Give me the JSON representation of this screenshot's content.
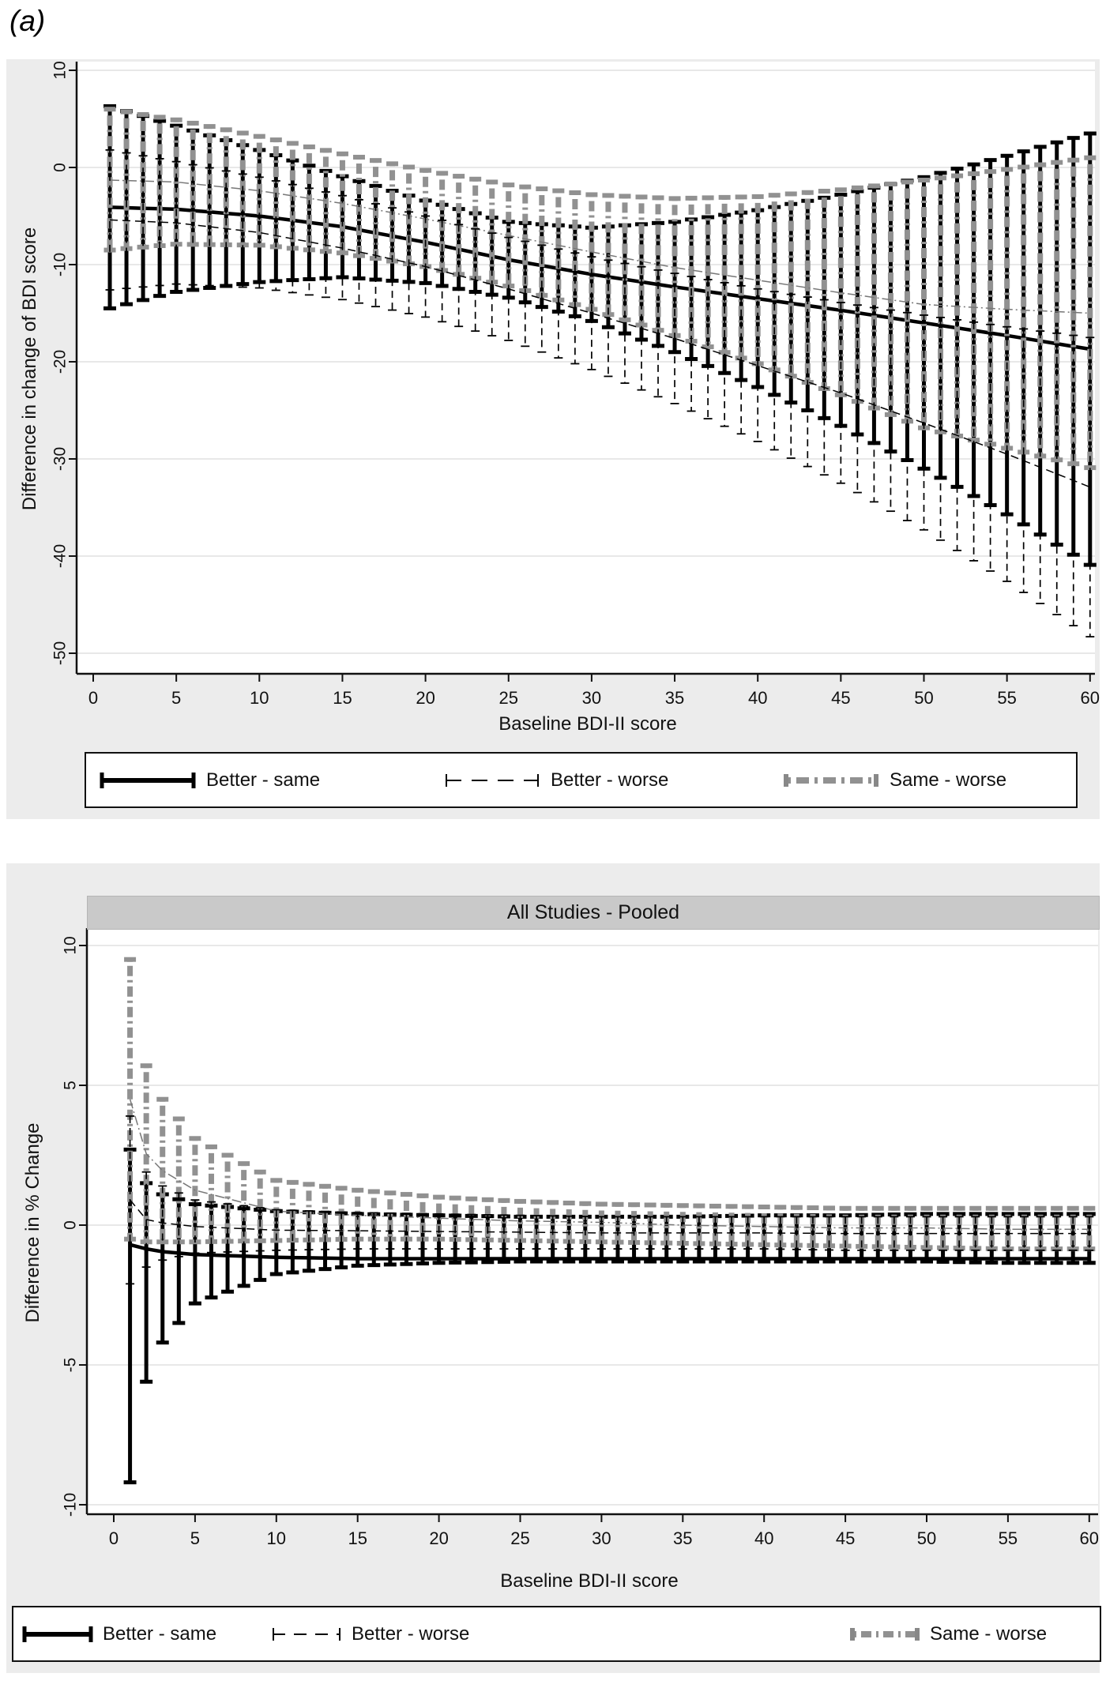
{
  "figure": {
    "description": "Two-panel grayscale error-bar figure of differences in BDI change by baseline severity",
    "colors": {
      "black": "#000000",
      "gray_series": "#919191",
      "gray_series_center": "#777777",
      "figure_background": "#ececec",
      "plot_background": "#ffffff",
      "gridline": "#e0e0e0",
      "axis": "#111111",
      "band_background": "#c9c9c9",
      "text": "#111111"
    }
  },
  "panel_a": {
    "letter": "(a)",
    "y_axis": {
      "title": "Difference in change of BDI score",
      "ticks": [
        {
          "v": 10,
          "label": "10"
        },
        {
          "v": 0,
          "label": "0"
        },
        {
          "v": -10,
          "label": "-10"
        },
        {
          "v": -20,
          "label": "-20"
        },
        {
          "v": -30,
          "label": "-30"
        },
        {
          "v": -40,
          "label": "-40"
        },
        {
          "v": -50,
          "label": "-50"
        }
      ]
    },
    "x_axis": {
      "title": "Baseline BDI-II score",
      "ticks": [
        {
          "v": 0,
          "label": "0"
        },
        {
          "v": 5,
          "label": "5"
        },
        {
          "v": 10,
          "label": "10"
        },
        {
          "v": 15,
          "label": "15"
        },
        {
          "v": 20,
          "label": "20"
        },
        {
          "v": 25,
          "label": "25"
        },
        {
          "v": 30,
          "label": "30"
        },
        {
          "v": 35,
          "label": "35"
        },
        {
          "v": 40,
          "label": "40"
        },
        {
          "v": 45,
          "label": "45"
        },
        {
          "v": 50,
          "label": "50"
        },
        {
          "v": 55,
          "label": "55"
        },
        {
          "v": 60,
          "label": "60"
        }
      ]
    },
    "legend": [
      {
        "label": "Better - same",
        "style": "thick-solid-black"
      },
      {
        "label": "Better - worse",
        "style": "thin-dash-black"
      },
      {
        "label": "Same - worse",
        "style": "thick-dashdot-gray"
      }
    ],
    "chart_data": {
      "type": "errorbar",
      "title": "",
      "xlabel": "Baseline BDI-II score",
      "ylabel": "Difference in change of BDI score",
      "xlim": [
        0,
        60
      ],
      "ylim": [
        -52,
        11
      ],
      "grid": "horizontal",
      "bars_at_every_integer_x": true,
      "x_anchors": [
        1,
        5,
        10,
        15,
        20,
        25,
        30,
        35,
        40,
        45,
        50,
        55,
        60
      ],
      "series": [
        {
          "name": "Better - same",
          "style": "thick-solid-black",
          "center": [
            -4.1,
            -4.3,
            -5.0,
            -6.1,
            -7.7,
            -9.5,
            -11.0,
            -12.3,
            -13.5,
            -14.7,
            -16.0,
            -17.3,
            -18.7
          ],
          "hi": [
            6.3,
            4.3,
            1.8,
            -0.9,
            -3.4,
            -5.6,
            -6.2,
            -5.6,
            -4.4,
            -2.8,
            -1.0,
            1.2,
            3.5
          ],
          "lo": [
            -14.5,
            -12.8,
            -11.8,
            -11.3,
            -11.9,
            -13.4,
            -15.8,
            -19.0,
            -22.6,
            -26.6,
            -31.0,
            -35.7,
            -40.9
          ]
        },
        {
          "name": "Better - worse",
          "style": "thin-dash-black",
          "center": [
            -5.4,
            -5.7,
            -6.7,
            -8.3,
            -10.2,
            -12.5,
            -15.0,
            -17.6,
            -20.4,
            -23.2,
            -26.3,
            -29.5,
            -32.9
          ],
          "hi": [
            1.8,
            0.6,
            -1.0,
            -2.9,
            -5.0,
            -7.2,
            -9.2,
            -10.9,
            -12.5,
            -13.9,
            -15.2,
            -16.4,
            -17.5
          ],
          "lo": [
            -12.6,
            -12.0,
            -12.4,
            -13.6,
            -15.4,
            -17.8,
            -20.8,
            -24.3,
            -28.2,
            -32.5,
            -37.3,
            -42.6,
            -48.3
          ]
        },
        {
          "name": "Same - worse",
          "style": "thick-dashdot-gray",
          "center": [
            -1.3,
            -1.5,
            -2.4,
            -3.7,
            -5.3,
            -7.0,
            -8.7,
            -10.3,
            -11.6,
            -12.9,
            -14.1,
            -14.6,
            -15.0
          ],
          "hi": [
            6.0,
            4.9,
            3.2,
            1.4,
            -0.3,
            -1.8,
            -2.8,
            -3.2,
            -3.0,
            -2.3,
            -1.3,
            -0.2,
            1.0
          ],
          "lo": [
            -8.5,
            -7.9,
            -8.0,
            -8.8,
            -10.2,
            -12.2,
            -14.6,
            -17.3,
            -20.2,
            -23.4,
            -26.8,
            -28.9,
            -30.9
          ]
        }
      ]
    }
  },
  "panel_b": {
    "letter": "(b)",
    "band_title": "All Studies - Pooled",
    "y_axis": {
      "title": "Difference in % Change",
      "ticks": [
        {
          "v": 10,
          "label": "10"
        },
        {
          "v": 5,
          "label": "5"
        },
        {
          "v": 0,
          "label": "0"
        },
        {
          "v": -5,
          "label": "-5"
        },
        {
          "v": -10,
          "label": "-10"
        }
      ]
    },
    "x_axis": {
      "title": "Baseline BDI-II score",
      "ticks": [
        {
          "v": 0,
          "label": "0"
        },
        {
          "v": 5,
          "label": "5"
        },
        {
          "v": 10,
          "label": "10"
        },
        {
          "v": 15,
          "label": "15"
        },
        {
          "v": 20,
          "label": "20"
        },
        {
          "v": 25,
          "label": "25"
        },
        {
          "v": 30,
          "label": "30"
        },
        {
          "v": 35,
          "label": "35"
        },
        {
          "v": 40,
          "label": "40"
        },
        {
          "v": 45,
          "label": "45"
        },
        {
          "v": 50,
          "label": "50"
        },
        {
          "v": 55,
          "label": "55"
        },
        {
          "v": 60,
          "label": "60"
        }
      ]
    },
    "legend": [
      {
        "label": "Better - same",
        "style": "thick-solid-black"
      },
      {
        "label": "Better - worse",
        "style": "thin-dash-black"
      },
      {
        "label": "Same - worse",
        "style": "thick-dashdot-gray"
      }
    ],
    "chart_data": {
      "type": "errorbar",
      "title": "All Studies - Pooled",
      "xlabel": "Baseline BDI-II score",
      "ylabel": "Difference in % Change",
      "xlim": [
        0,
        60
      ],
      "ylim": [
        -10.3,
        10.6
      ],
      "grid": "horizontal",
      "bars_at_every_integer_x": true,
      "x_anchors": [
        1,
        2,
        3,
        5,
        10,
        15,
        20,
        25,
        30,
        35,
        40,
        45,
        50,
        55,
        60
      ],
      "series": [
        {
          "name": "Better - same",
          "style": "thick-solid-black",
          "center": [
            -0.7,
            -0.85,
            -0.95,
            -1.05,
            -1.15,
            -1.2,
            -1.2,
            -1.2,
            -1.2,
            -1.2,
            -1.2,
            -1.2,
            -1.2,
            -1.2,
            -1.2
          ],
          "hi": [
            2.7,
            1.5,
            1.1,
            0.75,
            0.5,
            0.4,
            0.35,
            0.3,
            0.3,
            0.3,
            0.35,
            0.35,
            0.4,
            0.4,
            0.4
          ],
          "lo": [
            -9.2,
            -5.6,
            -4.2,
            -2.8,
            -1.75,
            -1.45,
            -1.35,
            -1.3,
            -1.3,
            -1.3,
            -1.3,
            -1.3,
            -1.3,
            -1.35,
            -1.35
          ]
        },
        {
          "name": "Better - worse",
          "style": "thin-dash-black",
          "center": [
            0.9,
            0.2,
            0.08,
            -0.05,
            -0.18,
            -0.2,
            -0.23,
            -0.25,
            -0.28,
            -0.28,
            -0.28,
            -0.3,
            -0.3,
            -0.3,
            -0.3
          ],
          "hi": [
            3.9,
            1.9,
            1.4,
            0.9,
            0.55,
            0.45,
            0.4,
            0.35,
            0.3,
            0.3,
            0.3,
            0.3,
            0.3,
            0.3,
            0.3
          ],
          "lo": [
            -2.1,
            -1.5,
            -1.25,
            -1.0,
            -0.9,
            -0.85,
            -0.85,
            -0.85,
            -0.85,
            -0.85,
            -0.85,
            -0.9,
            -0.9,
            -0.9,
            -0.9
          ]
        },
        {
          "name": "Same - worse",
          "style": "thick-dashdot-gray",
          "center": [
            4.5,
            2.55,
            1.95,
            1.25,
            0.5,
            0.35,
            0.25,
            0.15,
            0.1,
            0.0,
            -0.05,
            -0.1,
            -0.1,
            -0.15,
            -0.15
          ],
          "hi": [
            9.5,
            5.7,
            4.5,
            3.1,
            1.6,
            1.25,
            1.0,
            0.85,
            0.75,
            0.7,
            0.65,
            0.6,
            0.6,
            0.6,
            0.6
          ],
          "lo": [
            -0.5,
            -0.6,
            -0.6,
            -0.6,
            -0.55,
            -0.5,
            -0.5,
            -0.55,
            -0.6,
            -0.65,
            -0.7,
            -0.75,
            -0.8,
            -0.85,
            -0.85
          ]
        }
      ]
    }
  }
}
